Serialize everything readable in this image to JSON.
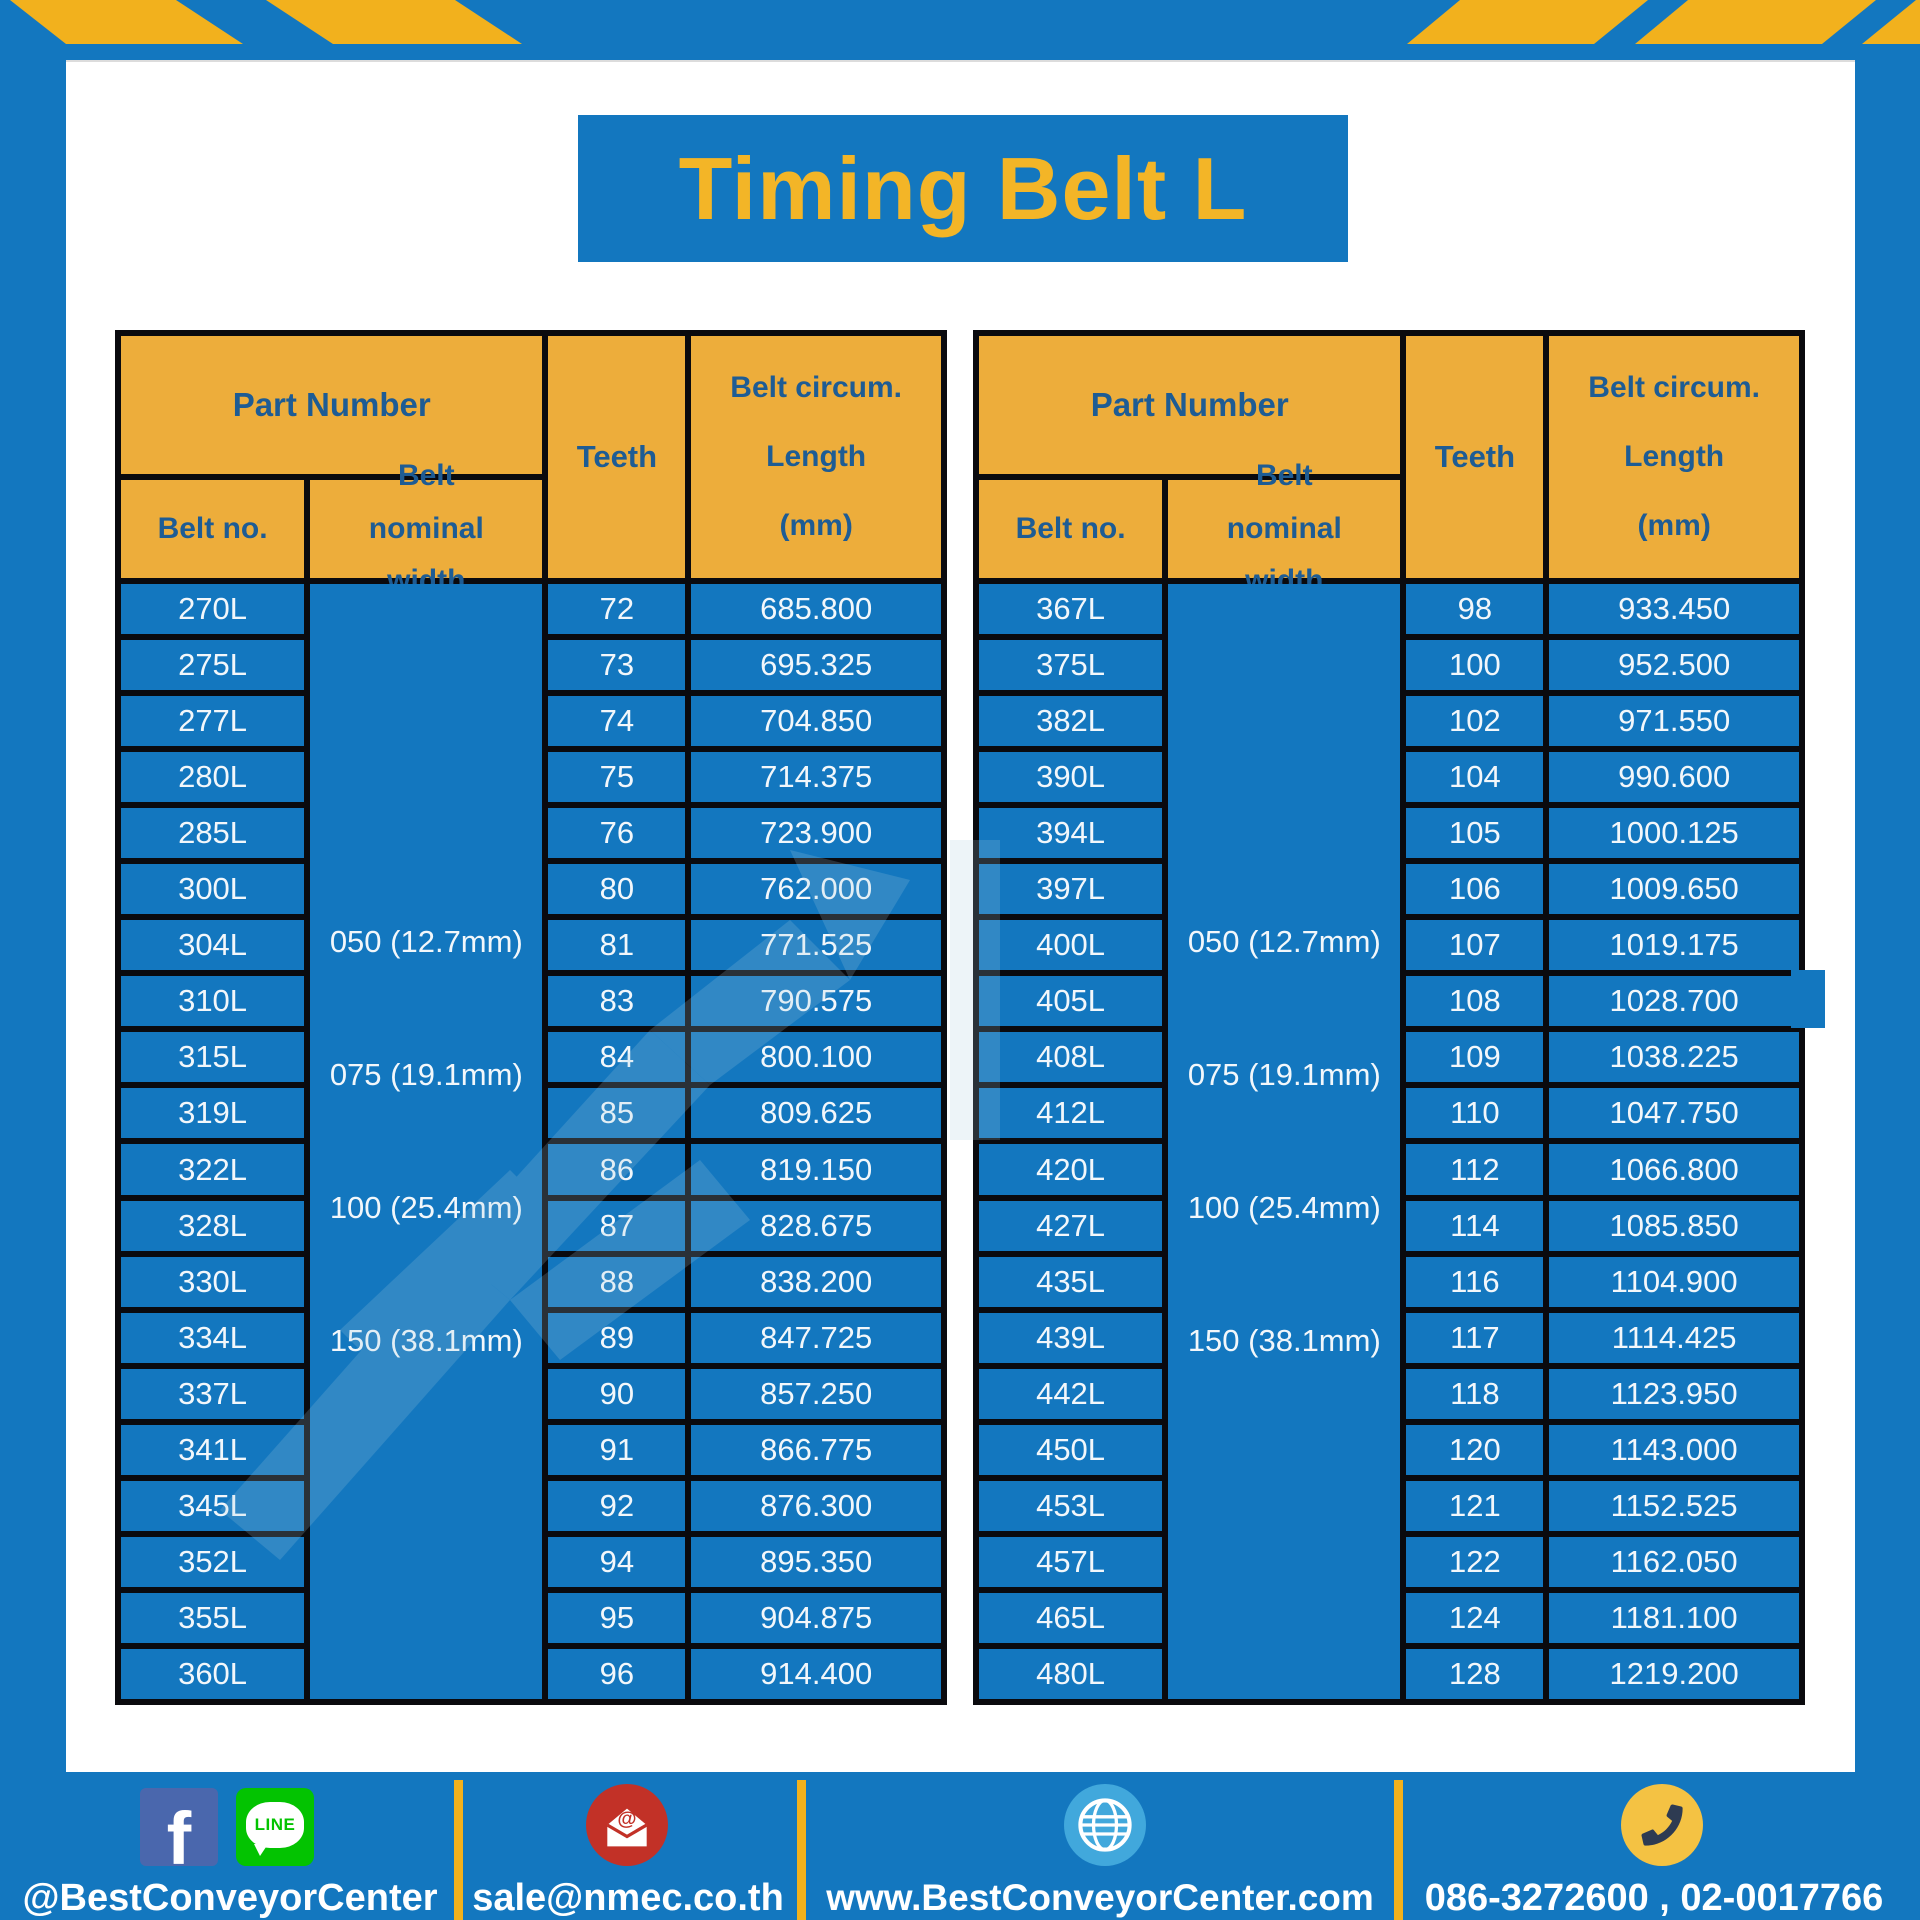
{
  "title": "Timing Belt L",
  "colors": {
    "frame_blue": "#1377BF",
    "stripe_yellow": "#F2B11D",
    "header_yellow": "#EDAD3B",
    "header_text_blue": "#1E5C94",
    "cell_text_white": "#F2F7FB",
    "facebook_blue": "#4A67AD",
    "line_green": "#03C301",
    "email_red": "#C23127",
    "globe_blue": "#41A8DC",
    "phone_yellow": "#F4C243"
  },
  "table_headers": {
    "part_number": "Part Number",
    "belt_no": "Belt no.",
    "belt_nominal_width": "Belt nominal width",
    "teeth": "Teeth",
    "belt_circum": "Belt circum.",
    "length": "Length",
    "mm_unit": "(mm)"
  },
  "nominal_widths": [
    "050 (12.7mm)",
    "075 (19.1mm)",
    "100 (25.4mm)",
    "150 (38.1mm)"
  ],
  "tables": [
    {
      "rows": [
        {
          "belt_no": "270L",
          "teeth": "72",
          "length_mm": "685.800"
        },
        {
          "belt_no": "275L",
          "teeth": "73",
          "length_mm": "695.325"
        },
        {
          "belt_no": "277L",
          "teeth": "74",
          "length_mm": "704.850"
        },
        {
          "belt_no": "280L",
          "teeth": "75",
          "length_mm": "714.375"
        },
        {
          "belt_no": "285L",
          "teeth": "76",
          "length_mm": "723.900"
        },
        {
          "belt_no": "300L",
          "teeth": "80",
          "length_mm": "762.000"
        },
        {
          "belt_no": "304L",
          "teeth": "81",
          "length_mm": "771.525"
        },
        {
          "belt_no": "310L",
          "teeth": "83",
          "length_mm": "790.575"
        },
        {
          "belt_no": "315L",
          "teeth": "84",
          "length_mm": "800.100"
        },
        {
          "belt_no": "319L",
          "teeth": "85",
          "length_mm": "809.625"
        },
        {
          "belt_no": "322L",
          "teeth": "86",
          "length_mm": "819.150"
        },
        {
          "belt_no": "328L",
          "teeth": "87",
          "length_mm": "828.675"
        },
        {
          "belt_no": "330L",
          "teeth": "88",
          "length_mm": "838.200"
        },
        {
          "belt_no": "334L",
          "teeth": "89",
          "length_mm": "847.725"
        },
        {
          "belt_no": "337L",
          "teeth": "90",
          "length_mm": "857.250"
        },
        {
          "belt_no": "341L",
          "teeth": "91",
          "length_mm": "866.775"
        },
        {
          "belt_no": "345L",
          "teeth": "92",
          "length_mm": "876.300"
        },
        {
          "belt_no": "352L",
          "teeth": "94",
          "length_mm": "895.350"
        },
        {
          "belt_no": "355L",
          "teeth": "95",
          "length_mm": "904.875"
        },
        {
          "belt_no": "360L",
          "teeth": "96",
          "length_mm": "914.400"
        }
      ]
    },
    {
      "rows": [
        {
          "belt_no": "367L",
          "teeth": "98",
          "length_mm": "933.450"
        },
        {
          "belt_no": "375L",
          "teeth": "100",
          "length_mm": "952.500"
        },
        {
          "belt_no": "382L",
          "teeth": "102",
          "length_mm": "971.550"
        },
        {
          "belt_no": "390L",
          "teeth": "104",
          "length_mm": "990.600"
        },
        {
          "belt_no": "394L",
          "teeth": "105",
          "length_mm": "1000.125"
        },
        {
          "belt_no": "397L",
          "teeth": "106",
          "length_mm": "1009.650"
        },
        {
          "belt_no": "400L",
          "teeth": "107",
          "length_mm": "1019.175"
        },
        {
          "belt_no": "405L",
          "teeth": "108",
          "length_mm": "1028.700"
        },
        {
          "belt_no": "408L",
          "teeth": "109",
          "length_mm": "1038.225"
        },
        {
          "belt_no": "412L",
          "teeth": "110",
          "length_mm": "1047.750"
        },
        {
          "belt_no": "420L",
          "teeth": "112",
          "length_mm": "1066.800"
        },
        {
          "belt_no": "427L",
          "teeth": "114",
          "length_mm": "1085.850"
        },
        {
          "belt_no": "435L",
          "teeth": "116",
          "length_mm": "1104.900"
        },
        {
          "belt_no": "439L",
          "teeth": "117",
          "length_mm": "1114.425"
        },
        {
          "belt_no": "442L",
          "teeth": "118",
          "length_mm": "1123.950"
        },
        {
          "belt_no": "450L",
          "teeth": "120",
          "length_mm": "1143.000"
        },
        {
          "belt_no": "453L",
          "teeth": "121",
          "length_mm": "1152.525"
        },
        {
          "belt_no": "457L",
          "teeth": "122",
          "length_mm": "1162.050"
        },
        {
          "belt_no": "465L",
          "teeth": "124",
          "length_mm": "1181.100"
        },
        {
          "belt_no": "480L",
          "teeth": "128",
          "length_mm": "1219.200"
        }
      ]
    }
  ],
  "footer": {
    "facebook_letter": "f",
    "line_label": "LINE",
    "social_handle": "@BestConveyorCenter",
    "email": "sale@nmec.co.th",
    "website": "www.BestConveyorCenter.com",
    "phone": "086-3272600 , 02-0017766"
  }
}
